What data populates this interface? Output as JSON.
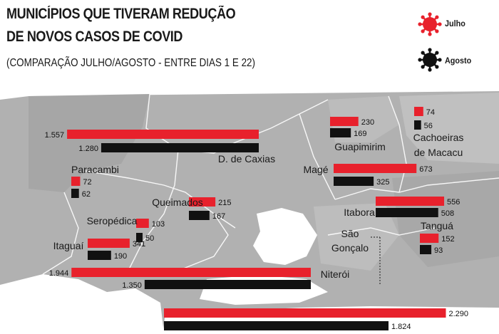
{
  "header": {
    "title_line1": "MUNICÍPIOS QUE TIVERAM REDUÇÃO",
    "title_line2": "DE NOVOS CASOS DE COVID",
    "subtitle": "(COMPARAÇÃO JULHO/AGOSTO - ENTRE DIAS 1 E 22)"
  },
  "legend": [
    {
      "label": "Julho",
      "color": "#e8212c",
      "icon": "virus-icon"
    },
    {
      "label": "Agosto",
      "color": "#111111",
      "icon": "virus-icon"
    }
  ],
  "colors": {
    "july": "#e8212c",
    "august": "#111111",
    "map_land": "#b1b1b1",
    "map_land_dark": "#a2a2a2",
    "water": "#ffffff"
  },
  "chart_data": {
    "type": "bar",
    "series_names": [
      "Julho",
      "Agosto"
    ],
    "categories": [
      "D. de Caxias",
      "Guapimirim",
      "Cachoeiras de Macacu",
      "Paracambi",
      "Magé",
      "Queimados",
      "Itaboraí",
      "Seropédica",
      "Tanguá",
      "Itaguaí",
      "São Gonçalo",
      "Niterói",
      ""
    ],
    "items": [
      {
        "name": "D. de Caxias",
        "july": 1557,
        "august": 1280,
        "july_label": "1.557",
        "august_label": "1.280"
      },
      {
        "name": "Guapimirim",
        "july": 230,
        "august": 169,
        "july_label": "230",
        "august_label": "169"
      },
      {
        "name": "Cachoeiras de Macacu",
        "july": 74,
        "august": 56,
        "july_label": "74",
        "august_label": "56"
      },
      {
        "name": "Paracambi",
        "july": 72,
        "august": 62,
        "july_label": "72",
        "august_label": "62"
      },
      {
        "name": "Magé",
        "july": 673,
        "august": 325,
        "july_label": "673",
        "august_label": "325"
      },
      {
        "name": "Queimados",
        "july": 215,
        "august": 167,
        "july_label": "215",
        "august_label": "167"
      },
      {
        "name": "Itaboraí",
        "july": 556,
        "august": 508,
        "july_label": "556",
        "august_label": "508"
      },
      {
        "name": "Seropédica",
        "july": 103,
        "august": 50,
        "july_label": "103",
        "august_label": "50"
      },
      {
        "name": "Tanguá",
        "july": 152,
        "august": 93,
        "july_label": "152",
        "august_label": "93"
      },
      {
        "name": "Itaguaí",
        "july": 341,
        "august": 190,
        "july_label": "341",
        "august_label": "190"
      },
      {
        "name": "São Gonçalo",
        "july": null,
        "august": null,
        "july_label": "",
        "august_label": ""
      },
      {
        "name": "Niterói",
        "july": 1944,
        "august": 1350,
        "july_label": "1.944",
        "august_label": "1.350"
      },
      {
        "name": "",
        "july": 2290,
        "august": 1824,
        "july_label": "2.290",
        "august_label": "1.824"
      }
    ]
  }
}
